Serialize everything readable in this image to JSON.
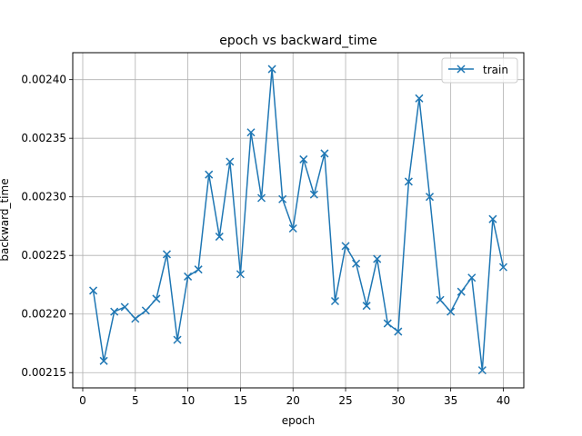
{
  "chart_data": {
    "type": "line",
    "title": "epoch vs backward_time",
    "xlabel": "epoch",
    "ylabel": "backward_time",
    "xlim": [
      -0.95,
      41.95
    ],
    "ylim": [
      0.002137,
      0.002423
    ],
    "xticks": [
      0,
      5,
      10,
      15,
      20,
      25,
      30,
      35,
      40
    ],
    "yticks": [
      0.00215,
      0.0022,
      0.00225,
      0.0023,
      0.00235,
      0.0024
    ],
    "ytick_labels": [
      "0.00215",
      "0.00220",
      "0.00225",
      "0.00230",
      "0.00235",
      "0.00240"
    ],
    "grid": true,
    "legend": "top-right",
    "series": [
      {
        "name": "train",
        "color": "#1f77b4",
        "marker": "x",
        "x": [
          1,
          2,
          3,
          4,
          5,
          6,
          7,
          8,
          9,
          10,
          11,
          12,
          13,
          14,
          15,
          16,
          17,
          18,
          19,
          20,
          21,
          22,
          23,
          24,
          25,
          26,
          27,
          28,
          29,
          30,
          31,
          32,
          33,
          34,
          35,
          36,
          37,
          38,
          39,
          40
        ],
        "y": [
          0.00222,
          0.00216,
          0.002202,
          0.002206,
          0.002196,
          0.002203,
          0.002213,
          0.002251,
          0.002178,
          0.002232,
          0.002238,
          0.002319,
          0.002266,
          0.00233,
          0.002234,
          0.002355,
          0.002299,
          0.002409,
          0.002298,
          0.002273,
          0.002332,
          0.002302,
          0.002337,
          0.002211,
          0.002258,
          0.002243,
          0.002207,
          0.002247,
          0.002192,
          0.002185,
          0.002313,
          0.002384,
          0.0023,
          0.002212,
          0.002202,
          0.002219,
          0.002231,
          0.002152,
          0.002281,
          0.00224
        ]
      }
    ]
  }
}
